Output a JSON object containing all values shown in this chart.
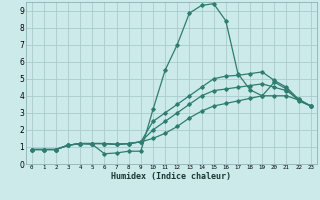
{
  "xlabel": "Humidex (Indice chaleur)",
  "bg_color": "#cdeaea",
  "grid_color": "#aacccc",
  "line_color": "#2e7d6e",
  "xlim": [
    -0.5,
    23.5
  ],
  "ylim": [
    0,
    9.5
  ],
  "xtick_vals": [
    0,
    1,
    2,
    3,
    4,
    5,
    6,
    7,
    8,
    9,
    10,
    11,
    12,
    13,
    14,
    15,
    16,
    17,
    18,
    19,
    20,
    21,
    22,
    23
  ],
  "xtick_labels": [
    "0",
    "1",
    "2",
    "3",
    "4",
    "5",
    "6",
    "7",
    "8",
    "9",
    "10",
    "11",
    "12",
    "13",
    "14",
    "15",
    "16",
    "17",
    "18",
    "19",
    "20",
    "21",
    "22",
    "23"
  ],
  "ytick_vals": [
    0,
    1,
    2,
    3,
    4,
    5,
    6,
    7,
    8,
    9
  ],
  "ytick_labels": [
    "0",
    "1",
    "2",
    "3",
    "4",
    "5",
    "6",
    "7",
    "8",
    "9"
  ],
  "lines": [
    {
      "x": [
        0,
        1,
        2,
        3,
        4,
        5,
        6,
        7,
        8,
        9,
        10,
        11,
        12,
        13,
        14,
        15,
        16,
        17,
        18,
        19,
        20,
        21,
        22,
        23
      ],
      "y": [
        0.85,
        0.85,
        0.85,
        1.1,
        1.2,
        1.15,
        0.6,
        0.65,
        0.75,
        0.75,
        3.2,
        5.5,
        7.0,
        8.85,
        9.3,
        9.4,
        8.4,
        5.3,
        4.35,
        4.0,
        4.8,
        4.4,
        3.7,
        3.4
      ]
    },
    {
      "x": [
        0,
        1,
        2,
        3,
        4,
        5,
        6,
        7,
        8,
        9,
        10,
        11,
        12,
        13,
        14,
        15,
        16,
        17,
        18,
        19,
        20,
        21,
        22,
        23
      ],
      "y": [
        0.85,
        0.85,
        0.85,
        1.1,
        1.2,
        1.2,
        1.2,
        1.15,
        1.2,
        1.3,
        2.5,
        3.0,
        3.5,
        4.0,
        4.5,
        5.0,
        5.15,
        5.2,
        5.3,
        5.4,
        4.9,
        4.5,
        3.8,
        3.4
      ]
    },
    {
      "x": [
        0,
        1,
        2,
        3,
        4,
        5,
        6,
        7,
        8,
        9,
        10,
        11,
        12,
        13,
        14,
        15,
        16,
        17,
        18,
        19,
        20,
        21,
        22,
        23
      ],
      "y": [
        0.85,
        0.85,
        0.85,
        1.1,
        1.2,
        1.2,
        1.2,
        1.15,
        1.2,
        1.3,
        2.0,
        2.5,
        3.0,
        3.5,
        4.0,
        4.3,
        4.4,
        4.5,
        4.6,
        4.7,
        4.5,
        4.3,
        3.8,
        3.4
      ]
    },
    {
      "x": [
        0,
        1,
        2,
        3,
        4,
        5,
        6,
        7,
        8,
        9,
        10,
        11,
        12,
        13,
        14,
        15,
        16,
        17,
        18,
        19,
        20,
        21,
        22,
        23
      ],
      "y": [
        0.85,
        0.85,
        0.85,
        1.1,
        1.2,
        1.2,
        1.2,
        1.15,
        1.2,
        1.3,
        1.5,
        1.8,
        2.2,
        2.7,
        3.1,
        3.4,
        3.55,
        3.7,
        3.85,
        4.0,
        4.0,
        4.0,
        3.75,
        3.4
      ]
    }
  ]
}
